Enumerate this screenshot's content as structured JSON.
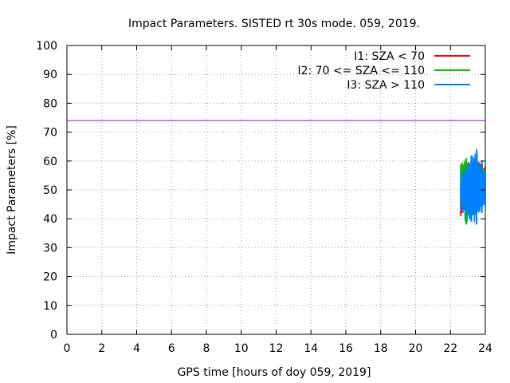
{
  "chart_data": {
    "type": "line",
    "title": "Impact Parameters. SISTED rt 30s mode. 059, 2019.",
    "xlabel": "GPS time [hours of doy 059, 2019]",
    "ylabel": "Impact Parameters [%]",
    "xlim": [
      0,
      24
    ],
    "ylim": [
      0,
      100
    ],
    "xticks": [
      "0",
      "2",
      "4",
      "6",
      "8",
      "10",
      "12",
      "14",
      "16",
      "18",
      "20",
      "22",
      "24"
    ],
    "yticks": [
      "0",
      "10",
      "20",
      "30",
      "40",
      "50",
      "60",
      "70",
      "80",
      "90",
      "100"
    ],
    "grid": true,
    "legend_position": "top-right",
    "reference_line": {
      "y": 74,
      "color": "#9400d3"
    },
    "series": [
      {
        "name": "I1: SZA < 70",
        "color": "#ff0000",
        "x": [
          22.6,
          22.9,
          23.2,
          23.5,
          23.8,
          24.0
        ],
        "y_min": [
          41,
          44,
          45,
          43,
          44,
          46
        ],
        "y_max": [
          58,
          60,
          59,
          61,
          60,
          58
        ]
      },
      {
        "name": "I2: 70 <= SZA <= 110",
        "color": "#00c000",
        "x": [
          22.6,
          22.9,
          23.2,
          23.5,
          23.8,
          24.0
        ],
        "y_min": [
          44,
          38,
          40,
          41,
          43,
          45
        ],
        "y_max": [
          59,
          61,
          60,
          62,
          59,
          57
        ]
      },
      {
        "name": "I3: SZA > 110",
        "color": "#0080ff",
        "x": [
          22.6,
          22.9,
          23.2,
          23.5,
          23.8,
          24.0
        ],
        "y_min": [
          43,
          40,
          39,
          38,
          42,
          44
        ],
        "y_max": [
          56,
          58,
          62,
          64,
          60,
          56
        ]
      }
    ]
  }
}
